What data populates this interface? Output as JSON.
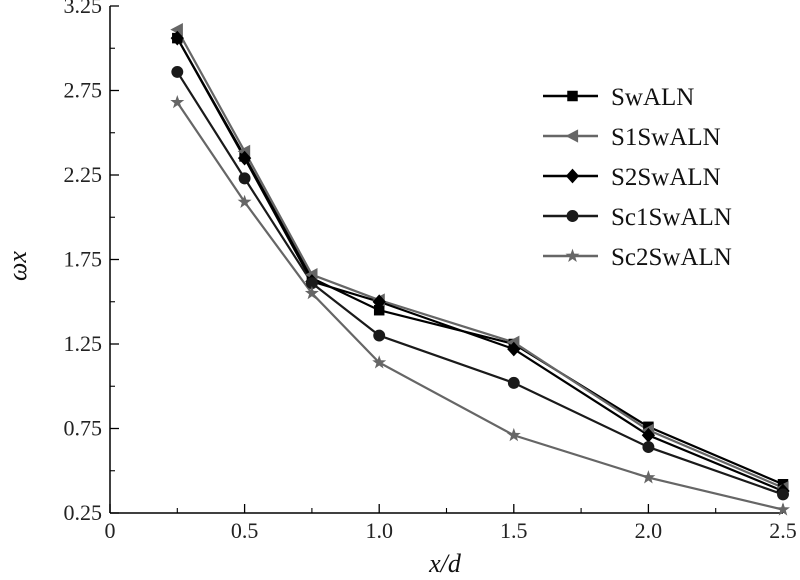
{
  "chart_data": {
    "type": "line",
    "title": "",
    "xlabel": "x/d",
    "ylabel": "ωx",
    "xlim": [
      0,
      2.5
    ],
    "ylim": [
      0.25,
      3.25
    ],
    "x_ticks": [
      "0",
      "0.5",
      "1.0",
      "1.5",
      "2.0",
      "2.5"
    ],
    "y_ticks": [
      "0.25",
      "0.75",
      "1.25",
      "1.75",
      "2.25",
      "2.75",
      "3.25"
    ],
    "legend_position": "top-right",
    "grid": false,
    "x": [
      0.25,
      0.5,
      0.75,
      1.0,
      1.5,
      2.0,
      2.5
    ],
    "series": [
      {
        "name": "SwALN",
        "marker": "square",
        "color": "#000000",
        "values": [
          3.06,
          2.36,
          1.64,
          1.45,
          1.25,
          0.76,
          0.42
        ]
      },
      {
        "name": "S1SwALN",
        "marker": "triangle-left",
        "color": "#666666",
        "values": [
          3.11,
          2.39,
          1.66,
          1.51,
          1.26,
          0.74,
          0.4
        ]
      },
      {
        "name": "S2SwALN",
        "marker": "diamond",
        "color": "#000000",
        "values": [
          3.06,
          2.35,
          1.62,
          1.5,
          1.22,
          0.71,
          0.38
        ]
      },
      {
        "name": "Sc1SwALN",
        "marker": "circle",
        "color": "#1a1a1a",
        "values": [
          2.86,
          2.23,
          1.61,
          1.3,
          1.02,
          0.64,
          0.36
        ]
      },
      {
        "name": "Sc2SwALN",
        "marker": "star",
        "color": "#666666",
        "values": [
          2.68,
          2.09,
          1.55,
          1.14,
          0.71,
          0.46,
          0.27
        ]
      }
    ]
  }
}
